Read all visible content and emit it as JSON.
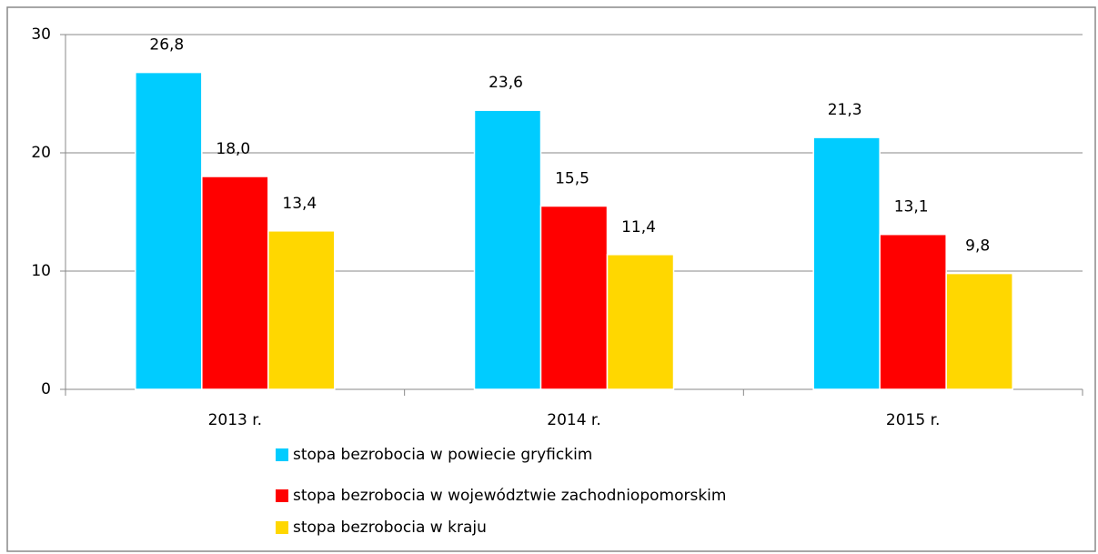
{
  "chart_data": {
    "type": "bar",
    "categories": [
      "2013 r.",
      "2014 r.",
      "2015 r."
    ],
    "series": [
      {
        "name": "stopa bezrobocia w powiecie gryfickim",
        "color": "#00ccff",
        "values": [
          26.8,
          23.6,
          21.3
        ],
        "value_labels": [
          "26,8",
          "23,6",
          "21,3"
        ]
      },
      {
        "name": "stopa bezrobocia w województwie zachodniopomorskim",
        "color": "#ff0000",
        "values": [
          18.0,
          15.5,
          13.1
        ],
        "value_labels": [
          "18,0",
          "15,5",
          "13,1"
        ]
      },
      {
        "name": "stopa bezrobocia w kraju",
        "color": "#ffd700",
        "values": [
          13.4,
          11.4,
          9.8
        ],
        "value_labels": [
          "13,4",
          "11,4",
          "9,8"
        ]
      }
    ],
    "ylim": [
      0,
      30
    ],
    "yticks": [
      0,
      10,
      20,
      30
    ],
    "grid": true,
    "legend": "bottom"
  }
}
